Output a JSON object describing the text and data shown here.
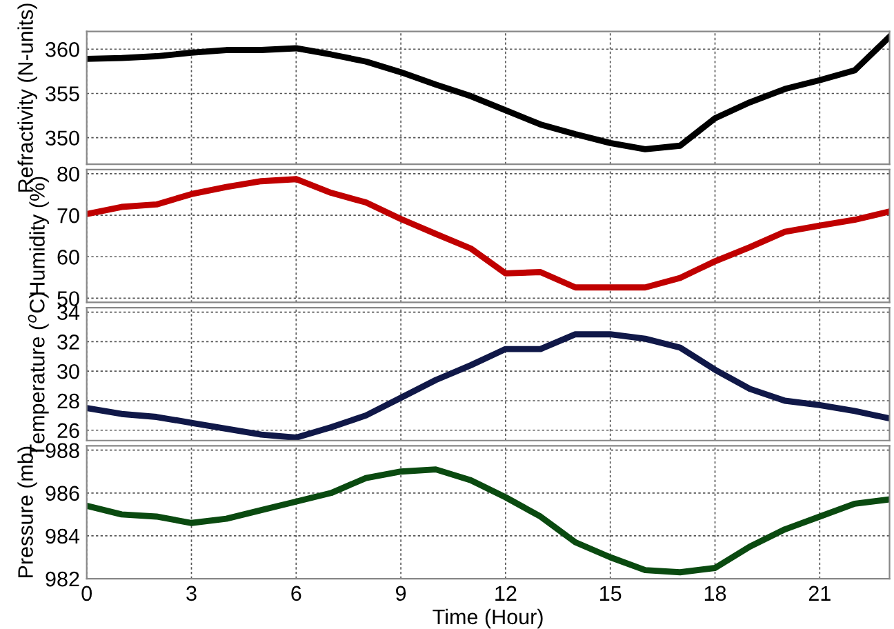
{
  "chart_data": [
    {
      "type": "line",
      "ylabel": "Refractivity (N-units)",
      "x": [
        0,
        1,
        2,
        3,
        4,
        5,
        6,
        7,
        8,
        9,
        10,
        11,
        12,
        13,
        14,
        15,
        16,
        17,
        18,
        19,
        20,
        21,
        22,
        23
      ],
      "series": [
        {
          "color": "#000000",
          "values": [
            358.9,
            359.0,
            359.2,
            359.6,
            359.9,
            359.9,
            360.1,
            359.4,
            358.6,
            357.4,
            356.0,
            354.7,
            353.1,
            351.5,
            350.4,
            349.4,
            348.7,
            349.1,
            352.2,
            354.0,
            355.5,
            356.5,
            357.6,
            361.4
          ]
        }
      ],
      "xlim": [
        0,
        23
      ],
      "xticks": [
        0,
        3,
        6,
        9,
        12,
        15,
        18,
        21
      ],
      "ylim": [
        347,
        362
      ],
      "yticks": [
        350,
        355,
        360
      ],
      "grid": true,
      "tick_labels": "y"
    },
    {
      "type": "line",
      "ylabel": "Humidity (%)",
      "x": [
        0,
        1,
        2,
        3,
        4,
        5,
        6,
        7,
        8,
        9,
        10,
        11,
        12,
        13,
        14,
        15,
        16,
        17,
        18,
        19,
        20,
        21,
        22,
        23
      ],
      "series": [
        {
          "color": "#c00000",
          "values": [
            70.3,
            72.0,
            72.6,
            75.1,
            76.8,
            78.2,
            78.7,
            75.4,
            73.1,
            69.1,
            65.5,
            62.0,
            56.0,
            56.3,
            52.6,
            52.6,
            52.6,
            54.9,
            58.9,
            62.3,
            66.0,
            67.5,
            68.9,
            70.9
          ]
        }
      ],
      "xlim": [
        0,
        23
      ],
      "xticks": [
        0,
        3,
        6,
        9,
        12,
        15,
        18,
        21
      ],
      "ylim": [
        49,
        81
      ],
      "yticks": [
        50,
        60,
        70,
        80
      ],
      "grid": true,
      "tick_labels": "y"
    },
    {
      "type": "line",
      "ylabel": "Temperature ($^{o}$C)",
      "x": [
        0,
        1,
        2,
        3,
        4,
        5,
        6,
        7,
        8,
        9,
        10,
        11,
        12,
        13,
        14,
        15,
        16,
        17,
        18,
        19,
        20,
        21,
        22,
        23
      ],
      "series": [
        {
          "color": "#101848",
          "values": [
            27.5,
            27.1,
            26.9,
            26.5,
            26.1,
            25.7,
            25.5,
            26.2,
            27.0,
            28.2,
            29.4,
            30.4,
            31.5,
            31.5,
            32.5,
            32.5,
            32.2,
            31.6,
            30.1,
            28.8,
            28.0,
            27.7,
            27.3,
            26.8
          ]
        }
      ],
      "xlim": [
        0,
        23
      ],
      "xticks": [
        0,
        3,
        6,
        9,
        12,
        15,
        18,
        21
      ],
      "ylim": [
        25.3,
        34.3
      ],
      "yticks": [
        26,
        28,
        30,
        32,
        34
      ],
      "grid": true,
      "tick_labels": "y"
    },
    {
      "type": "line",
      "ylabel": "Pressure (mb)",
      "xlabel": "Time (Hour)",
      "x": [
        0,
        1,
        2,
        3,
        4,
        5,
        6,
        7,
        8,
        9,
        10,
        11,
        12,
        13,
        14,
        15,
        16,
        17,
        18,
        19,
        20,
        21,
        22,
        23
      ],
      "series": [
        {
          "color": "#0a4a10",
          "values": [
            985.4,
            985.0,
            984.9,
            984.6,
            984.8,
            985.2,
            985.6,
            986.0,
            986.7,
            987.0,
            987.1,
            986.6,
            985.8,
            984.9,
            983.7,
            983.0,
            982.4,
            982.3,
            982.5,
            983.5,
            984.3,
            984.9,
            985.5,
            985.7
          ]
        }
      ],
      "xlim": [
        0,
        23
      ],
      "xticks": [
        0,
        3,
        6,
        9,
        12,
        15,
        18,
        21
      ],
      "ylim": [
        982,
        988.2
      ],
      "yticks": [
        982,
        984,
        986,
        988
      ],
      "grid": true
    }
  ]
}
